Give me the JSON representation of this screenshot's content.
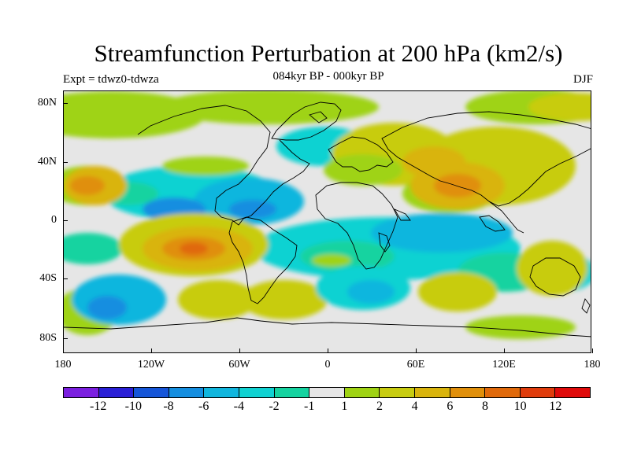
{
  "title": "Streamfunction Perturbation at 200 hPa (km2/s)",
  "subtitle": "084kyr BP - 000kyr BP",
  "left_label": "Expt = tdwz0-tdwza",
  "right_label": "DJF",
  "lat_labels": [
    "80N",
    "40N",
    "0",
    "40S",
    "80S"
  ],
  "lon_labels": [
    "180",
    "120W",
    "60W",
    "0",
    "60E",
    "120E",
    "180"
  ],
  "colorbar": {
    "colors": [
      "#7b1fe0",
      "#2a1fd6",
      "#1555d8",
      "#148ee0",
      "#10b6de",
      "#0fd2d2",
      "#14d3a0",
      "#e6e6e6",
      "#9fd313",
      "#c8cc10",
      "#d9b40c",
      "#e08f0a",
      "#e0690a",
      "#e03c0c",
      "#e00a0a"
    ],
    "labels": [
      "-12",
      "-10",
      "-8",
      "-6",
      "-4",
      "-2",
      "-1",
      "1",
      "2",
      "4",
      "6",
      "8",
      "10",
      "12"
    ]
  },
  "map": {
    "neutral_color": "#e6e6e6",
    "coastline_color": "#000000"
  }
}
